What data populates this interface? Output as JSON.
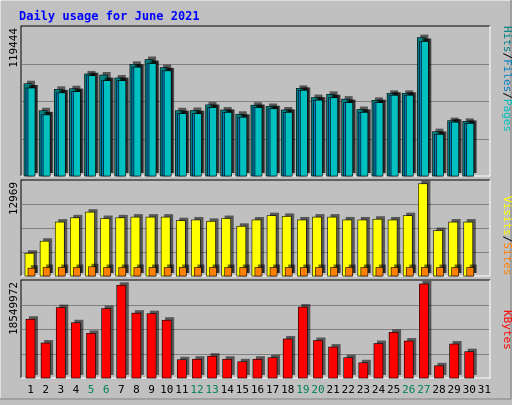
{
  "chart_data": [
    {
      "type": "bar",
      "title": "Daily usage for June 2021",
      "panel": "hits",
      "ymax_label": "119444",
      "ylabel_parts": [
        "Pages",
        "Files",
        "Hits"
      ],
      "ylabel_colors": [
        "#00c0c0",
        "#0080c0",
        "#008080"
      ],
      "categories": [
        "1",
        "2",
        "3",
        "4",
        "5",
        "6",
        "7",
        "8",
        "9",
        "10",
        "11",
        "12",
        "13",
        "14",
        "15",
        "16",
        "17",
        "18",
        "19",
        "20",
        "21",
        "22",
        "23",
        "24",
        "25",
        "26",
        "27",
        "28",
        "29",
        "30",
        "31"
      ],
      "weekend_days": [
        "5",
        "6",
        "12",
        "13",
        "19",
        "20",
        "26",
        "27"
      ],
      "ymax": 119444,
      "series": [
        {
          "name": "Hits",
          "color": "#008080",
          "values": [
            75500,
            53400,
            70900,
            71400,
            83500,
            82600,
            80200,
            91400,
            95300,
            88700,
            53400,
            53600,
            58200,
            54000,
            50500,
            57900,
            56900,
            54000,
            71700,
            64200,
            66800,
            62900,
            54400,
            61900,
            67600,
            67600,
            113200,
            36300,
            45300,
            44700,
            0
          ]
        },
        {
          "name": "Files",
          "color": "#0080c0",
          "values": [
            72000,
            50000,
            68000,
            69000,
            82000,
            78000,
            78000,
            89000,
            92000,
            86000,
            51000,
            51000,
            56000,
            52000,
            48000,
            56000,
            55000,
            52000,
            70000,
            62000,
            64000,
            60000,
            52000,
            60000,
            66000,
            66000,
            110000,
            34000,
            44000,
            43000,
            0
          ]
        },
        {
          "name": "Pages",
          "color": "#00c0c0",
          "values": [
            72000,
            50000,
            68000,
            69000,
            82000,
            78000,
            78000,
            89000,
            92000,
            86000,
            51000,
            51000,
            56000,
            52000,
            48000,
            56000,
            55000,
            52000,
            70000,
            62000,
            64000,
            60000,
            52000,
            60000,
            66000,
            66000,
            110000,
            34000,
            44000,
            43000,
            0
          ]
        }
      ]
    },
    {
      "type": "bar",
      "panel": "visits",
      "ymax_label": "12969",
      "ylabel_parts": [
        "Sites",
        "Visits"
      ],
      "ylabel_colors": [
        "#ff8000",
        "#ffff00"
      ],
      "categories": [
        "1",
        "2",
        "3",
        "4",
        "5",
        "6",
        "7",
        "8",
        "9",
        "10",
        "11",
        "12",
        "13",
        "14",
        "15",
        "16",
        "17",
        "18",
        "19",
        "20",
        "21",
        "22",
        "23",
        "24",
        "25",
        "26",
        "27",
        "28",
        "29",
        "30",
        "31"
      ],
      "ymax": 12969,
      "series": [
        {
          "name": "Visits",
          "color": "#ffff00",
          "values": [
            3200,
            4900,
            7600,
            8200,
            9000,
            8100,
            8200,
            8300,
            8300,
            8300,
            7800,
            7900,
            7700,
            8100,
            7000,
            7900,
            8500,
            8400,
            7900,
            8300,
            8300,
            7900,
            7900,
            8000,
            7900,
            8500,
            13000,
            6400,
            7600,
            7600,
            0
          ]
        },
        {
          "name": "Sites",
          "color": "#ff8000",
          "values": [
            1100,
            1200,
            1200,
            1200,
            1300,
            1200,
            1200,
            1200,
            1200,
            1200,
            1200,
            1200,
            1200,
            1200,
            1200,
            1200,
            1200,
            1200,
            1200,
            1200,
            1200,
            1200,
            1200,
            1200,
            1200,
            1200,
            1200,
            1200,
            1200,
            1200,
            0
          ]
        }
      ]
    },
    {
      "type": "bar",
      "panel": "kbytes",
      "ymax_label": "18549972",
      "ylabel_parts": [
        "KBytes"
      ],
      "ylabel_colors": [
        "#ff0000"
      ],
      "categories": [
        "1",
        "2",
        "3",
        "4",
        "5",
        "6",
        "7",
        "8",
        "9",
        "10",
        "11",
        "12",
        "13",
        "14",
        "15",
        "16",
        "17",
        "18",
        "19",
        "20",
        "21",
        "22",
        "23",
        "24",
        "25",
        "26",
        "27",
        "28",
        "29",
        "30",
        "31"
      ],
      "ymax": 18549972,
      "series": [
        {
          "name": "KBytes",
          "color": "#ff0000",
          "values": [
            11600000,
            6900000,
            13900000,
            10900000,
            8800000,
            13700000,
            18300000,
            12800000,
            12700000,
            11400000,
            3600000,
            3700000,
            4300000,
            3700000,
            3200000,
            3700000,
            4000000,
            7700000,
            14000000,
            7400000,
            6100000,
            4000000,
            3000000,
            6800000,
            9000000,
            7300000,
            18550000,
            2400000,
            6700000,
            5200000,
            0
          ]
        }
      ]
    }
  ],
  "colors": {
    "background": "#c0c0c0",
    "title": "#0000ff",
    "weekday_label": "#000000",
    "weekend_label": "#00805a"
  }
}
